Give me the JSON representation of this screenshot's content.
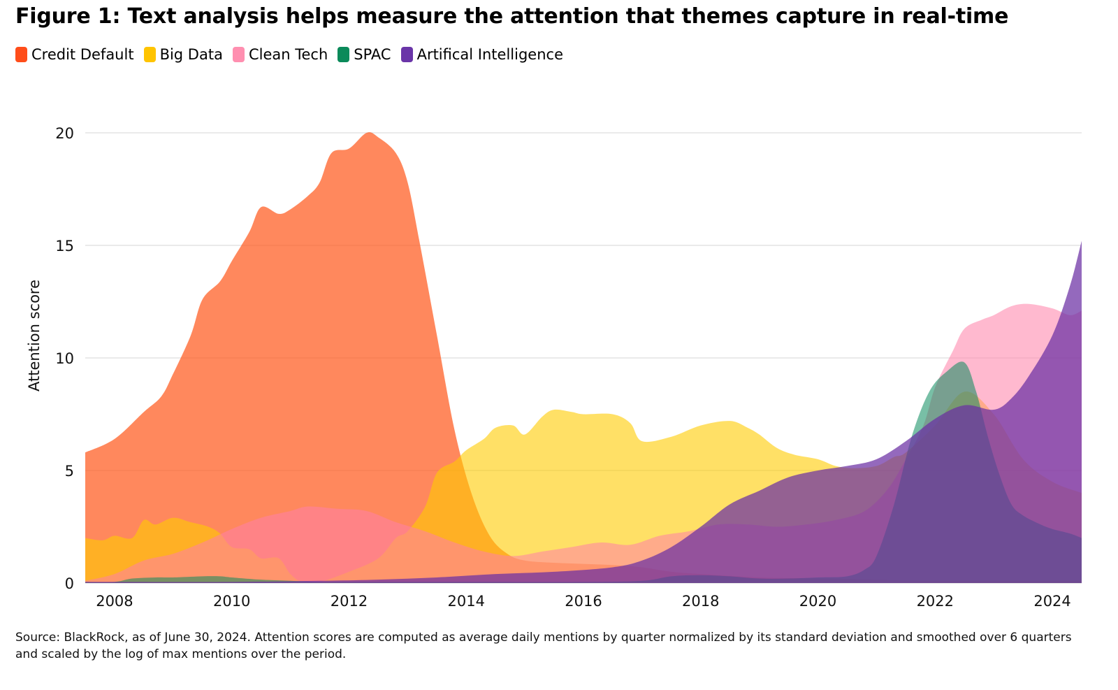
{
  "title": "Figure 1: Text analysis helps measure the attention that themes capture in real-time",
  "source": "Source: BlackRock, as of June 30, 2024. Attention scores are computed as average daily mentions by quarter normalized by its standard deviation and smoothed over 6 quarters and scaled by the log of max mentions over the period.",
  "chart_data": {
    "type": "area",
    "ylabel": "Attention score",
    "ylim": [
      0,
      20
    ],
    "xlim": [
      2007.5,
      2024.5
    ],
    "yticks": [
      0,
      5,
      10,
      15,
      20
    ],
    "xticks": [
      2008,
      2010,
      2012,
      2014,
      2016,
      2018,
      2020,
      2022,
      2024
    ],
    "legend_position": "top-left",
    "series": [
      {
        "name": "Credit Default",
        "color": "#ff5a1f",
        "opacity": 0.72,
        "legend_color": "#ff4d1a",
        "points": [
          [
            2007.5,
            5.8
          ],
          [
            2008.0,
            6.4
          ],
          [
            2008.5,
            7.6
          ],
          [
            2008.8,
            8.3
          ],
          [
            2009.0,
            9.3
          ],
          [
            2009.3,
            11.0
          ],
          [
            2009.5,
            12.6
          ],
          [
            2009.8,
            13.4
          ],
          [
            2010.0,
            14.3
          ],
          [
            2010.3,
            15.6
          ],
          [
            2010.5,
            16.7
          ],
          [
            2010.8,
            16.4
          ],
          [
            2011.0,
            16.6
          ],
          [
            2011.3,
            17.2
          ],
          [
            2011.5,
            17.8
          ],
          [
            2011.7,
            19.1
          ],
          [
            2012.0,
            19.3
          ],
          [
            2012.3,
            20.0
          ],
          [
            2012.5,
            19.8
          ],
          [
            2012.8,
            19.1
          ],
          [
            2013.0,
            17.8
          ],
          [
            2013.2,
            15.2
          ],
          [
            2013.5,
            11.0
          ],
          [
            2013.8,
            6.8
          ],
          [
            2014.1,
            3.9
          ],
          [
            2014.4,
            2.1
          ],
          [
            2014.7,
            1.3
          ],
          [
            2015.0,
            1.0
          ],
          [
            2015.5,
            0.9
          ],
          [
            2016.0,
            0.85
          ],
          [
            2016.5,
            0.8
          ],
          [
            2017.0,
            0.7
          ],
          [
            2017.5,
            0.5
          ],
          [
            2018.0,
            0.4
          ],
          [
            2019.0,
            0.25
          ],
          [
            2020.0,
            0.2
          ],
          [
            2021.0,
            0.15
          ],
          [
            2022.0,
            0.1
          ],
          [
            2024.5,
            0.1
          ]
        ]
      },
      {
        "name": "Big Data",
        "color": "#ffcc00",
        "opacity": 0.6,
        "legend_color": "#ffc400",
        "points": [
          [
            2007.5,
            2.0
          ],
          [
            2007.8,
            1.9
          ],
          [
            2008.0,
            2.1
          ],
          [
            2008.3,
            2.0
          ],
          [
            2008.5,
            2.8
          ],
          [
            2008.7,
            2.6
          ],
          [
            2009.0,
            2.9
          ],
          [
            2009.3,
            2.7
          ],
          [
            2009.6,
            2.5
          ],
          [
            2009.8,
            2.2
          ],
          [
            2010.0,
            1.6
          ],
          [
            2010.3,
            1.5
          ],
          [
            2010.5,
            1.1
          ],
          [
            2010.8,
            1.1
          ],
          [
            2011.0,
            0.4
          ],
          [
            2011.2,
            0.05
          ],
          [
            2011.5,
            0.05
          ],
          [
            2012.0,
            0.5
          ],
          [
            2012.5,
            1.1
          ],
          [
            2012.8,
            2.0
          ],
          [
            2013.0,
            2.3
          ],
          [
            2013.3,
            3.4
          ],
          [
            2013.5,
            4.9
          ],
          [
            2013.8,
            5.4
          ],
          [
            2014.0,
            5.9
          ],
          [
            2014.3,
            6.4
          ],
          [
            2014.5,
            6.9
          ],
          [
            2014.8,
            7.0
          ],
          [
            2015.0,
            6.6
          ],
          [
            2015.3,
            7.4
          ],
          [
            2015.5,
            7.7
          ],
          [
            2015.8,
            7.6
          ],
          [
            2016.0,
            7.5
          ],
          [
            2016.5,
            7.5
          ],
          [
            2016.8,
            7.1
          ],
          [
            2017.0,
            6.3
          ],
          [
            2017.5,
            6.5
          ],
          [
            2018.0,
            7.0
          ],
          [
            2018.5,
            7.2
          ],
          [
            2018.8,
            6.9
          ],
          [
            2019.0,
            6.6
          ],
          [
            2019.3,
            6.0
          ],
          [
            2019.6,
            5.7
          ],
          [
            2020.0,
            5.5
          ],
          [
            2020.3,
            5.2
          ],
          [
            2020.6,
            5.1
          ],
          [
            2021.0,
            5.2
          ],
          [
            2021.3,
            5.6
          ],
          [
            2021.5,
            5.8
          ],
          [
            2022.0,
            7.0
          ],
          [
            2022.5,
            8.5
          ],
          [
            2023.0,
            7.5
          ],
          [
            2023.5,
            5.5
          ],
          [
            2024.0,
            4.5
          ],
          [
            2024.5,
            4.0
          ]
        ]
      },
      {
        "name": "Clean Tech",
        "color": "#ff7fa8",
        "opacity": 0.55,
        "legend_color": "#ff8fb0",
        "points": [
          [
            2007.5,
            0.1
          ],
          [
            2008.0,
            0.4
          ],
          [
            2008.5,
            1.0
          ],
          [
            2009.0,
            1.3
          ],
          [
            2009.5,
            1.8
          ],
          [
            2010.0,
            2.4
          ],
          [
            2010.5,
            2.9
          ],
          [
            2011.0,
            3.2
          ],
          [
            2011.3,
            3.4
          ],
          [
            2011.8,
            3.3
          ],
          [
            2012.3,
            3.2
          ],
          [
            2012.8,
            2.7
          ],
          [
            2013.3,
            2.3
          ],
          [
            2013.8,
            1.8
          ],
          [
            2014.3,
            1.4
          ],
          [
            2014.8,
            1.2
          ],
          [
            2015.3,
            1.4
          ],
          [
            2015.8,
            1.6
          ],
          [
            2016.3,
            1.8
          ],
          [
            2016.8,
            1.7
          ],
          [
            2017.3,
            2.1
          ],
          [
            2017.8,
            2.3
          ],
          [
            2018.3,
            2.6
          ],
          [
            2018.8,
            2.6
          ],
          [
            2019.3,
            2.5
          ],
          [
            2019.8,
            2.6
          ],
          [
            2020.3,
            2.8
          ],
          [
            2020.8,
            3.2
          ],
          [
            2021.2,
            4.2
          ],
          [
            2021.5,
            5.5
          ],
          [
            2021.8,
            7.0
          ],
          [
            2022.0,
            8.7
          ],
          [
            2022.3,
            10.3
          ],
          [
            2022.5,
            11.3
          ],
          [
            2022.8,
            11.7
          ],
          [
            2023.0,
            11.9
          ],
          [
            2023.3,
            12.3
          ],
          [
            2023.6,
            12.4
          ],
          [
            2024.0,
            12.2
          ],
          [
            2024.3,
            11.9
          ],
          [
            2024.5,
            12.1
          ]
        ]
      },
      {
        "name": "SPAC",
        "color": "#0a8a5c",
        "opacity": 0.55,
        "legend_color": "#0b8a5a",
        "points": [
          [
            2007.5,
            0.05
          ],
          [
            2008.0,
            0.05
          ],
          [
            2008.3,
            0.2
          ],
          [
            2008.7,
            0.25
          ],
          [
            2009.0,
            0.25
          ],
          [
            2009.5,
            0.3
          ],
          [
            2009.8,
            0.3
          ],
          [
            2010.0,
            0.25
          ],
          [
            2010.5,
            0.15
          ],
          [
            2011.0,
            0.1
          ],
          [
            2011.5,
            0.05
          ],
          [
            2012.0,
            0.05
          ],
          [
            2014.0,
            0.05
          ],
          [
            2016.0,
            0.05
          ],
          [
            2017.0,
            0.1
          ],
          [
            2017.5,
            0.3
          ],
          [
            2018.0,
            0.35
          ],
          [
            2018.5,
            0.3
          ],
          [
            2019.0,
            0.2
          ],
          [
            2019.5,
            0.2
          ],
          [
            2020.0,
            0.25
          ],
          [
            2020.5,
            0.3
          ],
          [
            2020.8,
            0.6
          ],
          [
            2021.0,
            1.2
          ],
          [
            2021.3,
            3.5
          ],
          [
            2021.6,
            6.5
          ],
          [
            2021.9,
            8.5
          ],
          [
            2022.2,
            9.4
          ],
          [
            2022.5,
            9.8
          ],
          [
            2022.7,
            8.5
          ],
          [
            2022.9,
            6.5
          ],
          [
            2023.1,
            4.8
          ],
          [
            2023.3,
            3.5
          ],
          [
            2023.5,
            3.0
          ],
          [
            2023.8,
            2.6
          ],
          [
            2024.0,
            2.4
          ],
          [
            2024.3,
            2.2
          ],
          [
            2024.5,
            2.0
          ]
        ]
      },
      {
        "name": "Artifical Intelligence",
        "color": "#6b2fa3",
        "opacity": 0.72,
        "legend_color": "#6a35a8",
        "points": [
          [
            2007.5,
            0.05
          ],
          [
            2008.0,
            0.05
          ],
          [
            2010.0,
            0.05
          ],
          [
            2011.5,
            0.1
          ],
          [
            2012.5,
            0.15
          ],
          [
            2013.5,
            0.25
          ],
          [
            2014.5,
            0.4
          ],
          [
            2015.5,
            0.5
          ],
          [
            2016.5,
            0.7
          ],
          [
            2017.0,
            1.0
          ],
          [
            2017.5,
            1.6
          ],
          [
            2018.0,
            2.5
          ],
          [
            2018.5,
            3.5
          ],
          [
            2019.0,
            4.1
          ],
          [
            2019.5,
            4.7
          ],
          [
            2020.0,
            5.0
          ],
          [
            2020.5,
            5.2
          ],
          [
            2021.0,
            5.5
          ],
          [
            2021.5,
            6.3
          ],
          [
            2022.0,
            7.3
          ],
          [
            2022.5,
            7.9
          ],
          [
            2023.0,
            7.7
          ],
          [
            2023.3,
            8.2
          ],
          [
            2023.6,
            9.2
          ],
          [
            2024.0,
            11.0
          ],
          [
            2024.3,
            13.2
          ],
          [
            2024.5,
            15.2
          ]
        ]
      }
    ]
  }
}
